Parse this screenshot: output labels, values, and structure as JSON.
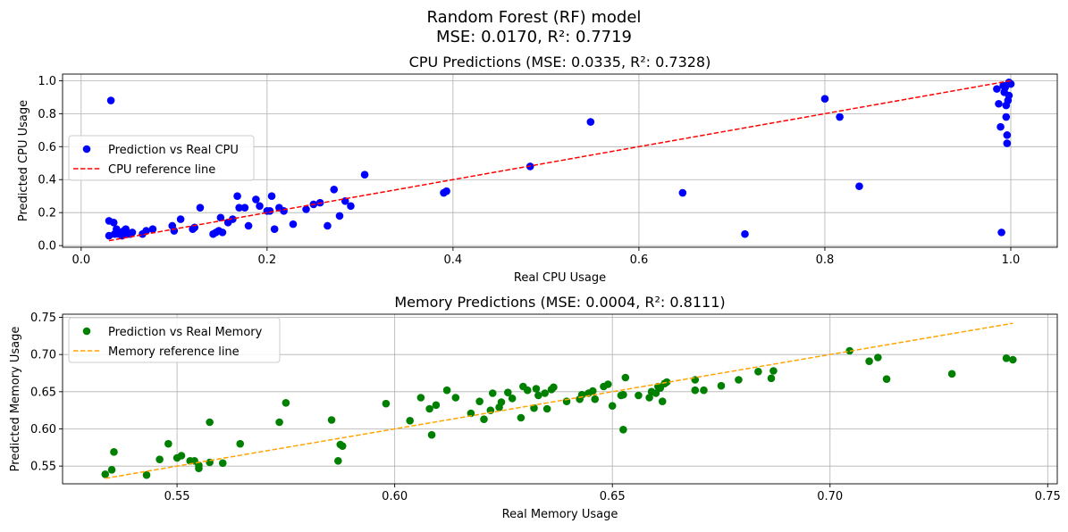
{
  "figure": {
    "title_line1": "Random Forest (RF) model",
    "title_line2": "MSE: 0.0170, R²: 0.7719"
  },
  "chart_data": [
    {
      "type": "scatter",
      "title": "CPU Predictions (MSE: 0.0335, R²: 0.7328)",
      "xlabel": "Real CPU Usage",
      "ylabel": "Predicted CPU Usage",
      "xlim": [
        -0.02,
        1.05
      ],
      "ylim": [
        -0.01,
        1.04
      ],
      "xticks": [
        0.0,
        0.2,
        0.4,
        0.6,
        0.8,
        1.0
      ],
      "xtick_labels": [
        "0.0",
        "0.2",
        "0.4",
        "0.6",
        "0.8",
        "1.0"
      ],
      "yticks": [
        0.0,
        0.2,
        0.4,
        0.6,
        0.8,
        1.0
      ],
      "ytick_labels": [
        "0.0",
        "0.2",
        "0.4",
        "0.6",
        "0.8",
        "1.0"
      ],
      "grid": true,
      "legend_position": "center-left",
      "series": [
        {
          "name": "Prediction vs Real CPU",
          "kind": "scatter",
          "color": "#0000ff",
          "points": [
            [
              0.032,
              0.88
            ],
            [
              0.03,
              0.15
            ],
            [
              0.03,
              0.06
            ],
            [
              0.035,
              0.14
            ],
            [
              0.036,
              0.07
            ],
            [
              0.038,
              0.1
            ],
            [
              0.04,
              0.07
            ],
            [
              0.042,
              0.08
            ],
            [
              0.044,
              0.06
            ],
            [
              0.046,
              0.09
            ],
            [
              0.048,
              0.1
            ],
            [
              0.05,
              0.07
            ],
            [
              0.053,
              0.07
            ],
            [
              0.055,
              0.08
            ],
            [
              0.066,
              0.07
            ],
            [
              0.07,
              0.09
            ],
            [
              0.077,
              0.1
            ],
            [
              0.098,
              0.12
            ],
            [
              0.1,
              0.09
            ],
            [
              0.107,
              0.16
            ],
            [
              0.12,
              0.1
            ],
            [
              0.122,
              0.11
            ],
            [
              0.128,
              0.23
            ],
            [
              0.142,
              0.07
            ],
            [
              0.145,
              0.08
            ],
            [
              0.148,
              0.09
            ],
            [
              0.15,
              0.17
            ],
            [
              0.152,
              0.08
            ],
            [
              0.158,
              0.14
            ],
            [
              0.163,
              0.16
            ],
            [
              0.168,
              0.3
            ],
            [
              0.17,
              0.23
            ],
            [
              0.176,
              0.23
            ],
            [
              0.18,
              0.12
            ],
            [
              0.188,
              0.28
            ],
            [
              0.192,
              0.24
            ],
            [
              0.2,
              0.21
            ],
            [
              0.203,
              0.21
            ],
            [
              0.205,
              0.3
            ],
            [
              0.208,
              0.1
            ],
            [
              0.213,
              0.23
            ],
            [
              0.218,
              0.21
            ],
            [
              0.228,
              0.13
            ],
            [
              0.242,
              0.22
            ],
            [
              0.25,
              0.25
            ],
            [
              0.257,
              0.26
            ],
            [
              0.265,
              0.12
            ],
            [
              0.272,
              0.34
            ],
            [
              0.278,
              0.18
            ],
            [
              0.284,
              0.27
            ],
            [
              0.29,
              0.24
            ],
            [
              0.305,
              0.43
            ],
            [
              0.39,
              0.32
            ],
            [
              0.393,
              0.33
            ],
            [
              0.483,
              0.48
            ],
            [
              0.548,
              0.75
            ],
            [
              0.647,
              0.32
            ],
            [
              0.714,
              0.07
            ],
            [
              0.8,
              0.89
            ],
            [
              0.816,
              0.78
            ],
            [
              0.837,
              0.36
            ],
            [
              0.985,
              0.95
            ],
            [
              0.987,
              0.86
            ],
            [
              0.989,
              0.72
            ],
            [
              0.99,
              0.08
            ],
            [
              0.992,
              0.97
            ],
            [
              0.993,
              0.93
            ],
            [
              0.994,
              0.96
            ],
            [
              0.995,
              0.85
            ],
            [
              0.995,
              0.78
            ],
            [
              0.996,
              0.67
            ],
            [
              0.996,
              0.62
            ],
            [
              0.997,
              0.88
            ],
            [
              0.998,
              0.91
            ],
            [
              0.998,
              0.99
            ],
            [
              1.0,
              0.98
            ]
          ]
        },
        {
          "name": "CPU reference line",
          "kind": "line",
          "color": "#ff0000",
          "dash": "dashed",
          "x": [
            0.03,
            1.0
          ],
          "y": [
            0.03,
            1.0
          ]
        }
      ]
    },
    {
      "type": "scatter",
      "title": "Memory Predictions (MSE: 0.0004, R²: 0.8111)",
      "xlabel": "Real Memory Usage",
      "ylabel": "Predicted Memory Usage",
      "xlim": [
        0.5237,
        0.7522
      ],
      "ylim": [
        0.5262,
        0.7542
      ],
      "xticks": [
        0.55,
        0.6,
        0.65,
        0.7,
        0.75
      ],
      "xtick_labels": [
        "0.55",
        "0.60",
        "0.65",
        "0.70",
        "0.75"
      ],
      "yticks": [
        0.55,
        0.6,
        0.65,
        0.7,
        0.75
      ],
      "ytick_labels": [
        "0.55",
        "0.60",
        "0.65",
        "0.70",
        "0.75"
      ],
      "grid": true,
      "legend_position": "top-left",
      "series": [
        {
          "name": "Prediction vs Real Memory",
          "kind": "scatter",
          "color": "#008000",
          "points": [
            [
              0.5335,
              0.539
            ],
            [
              0.535,
              0.545
            ],
            [
              0.5355,
              0.569
            ],
            [
              0.543,
              0.538
            ],
            [
              0.546,
              0.559
            ],
            [
              0.548,
              0.58
            ],
            [
              0.55,
              0.561
            ],
            [
              0.551,
              0.564
            ],
            [
              0.553,
              0.557
            ],
            [
              0.554,
              0.557
            ],
            [
              0.555,
              0.551
            ],
            [
              0.555,
              0.547
            ],
            [
              0.5575,
              0.555
            ],
            [
              0.5575,
              0.609
            ],
            [
              0.5605,
              0.554
            ],
            [
              0.5645,
              0.58
            ],
            [
              0.5735,
              0.609
            ],
            [
              0.575,
              0.635
            ],
            [
              0.5855,
              0.612
            ],
            [
              0.587,
              0.557
            ],
            [
              0.5875,
              0.579
            ],
            [
              0.588,
              0.577
            ],
            [
              0.598,
              0.634
            ],
            [
              0.6035,
              0.611
            ],
            [
              0.606,
              0.642
            ],
            [
              0.608,
              0.627
            ],
            [
              0.6085,
              0.592
            ],
            [
              0.6095,
              0.632
            ],
            [
              0.612,
              0.652
            ],
            [
              0.614,
              0.642
            ],
            [
              0.6175,
              0.621
            ],
            [
              0.6195,
              0.637
            ],
            [
              0.6205,
              0.613
            ],
            [
              0.622,
              0.625
            ],
            [
              0.6225,
              0.648
            ],
            [
              0.624,
              0.629
            ],
            [
              0.6245,
              0.636
            ],
            [
              0.626,
              0.649
            ],
            [
              0.627,
              0.641
            ],
            [
              0.629,
              0.615
            ],
            [
              0.6295,
              0.657
            ],
            [
              0.6305,
              0.652
            ],
            [
              0.632,
              0.628
            ],
            [
              0.6325,
              0.654
            ],
            [
              0.633,
              0.645
            ],
            [
              0.6345,
              0.648
            ],
            [
              0.635,
              0.627
            ],
            [
              0.636,
              0.653
            ],
            [
              0.6365,
              0.656
            ],
            [
              0.6395,
              0.637
            ],
            [
              0.6425,
              0.64
            ],
            [
              0.643,
              0.646
            ],
            [
              0.6445,
              0.648
            ],
            [
              0.6455,
              0.651
            ],
            [
              0.646,
              0.64
            ],
            [
              0.648,
              0.657
            ],
            [
              0.649,
              0.66
            ],
            [
              0.65,
              0.631
            ],
            [
              0.652,
              0.645
            ],
            [
              0.6525,
              0.599
            ],
            [
              0.6525,
              0.646
            ],
            [
              0.653,
              0.669
            ],
            [
              0.656,
              0.645
            ],
            [
              0.6585,
              0.642
            ],
            [
              0.659,
              0.65
            ],
            [
              0.66,
              0.648
            ],
            [
              0.6605,
              0.657
            ],
            [
              0.661,
              0.655
            ],
            [
              0.6615,
              0.637
            ],
            [
              0.662,
              0.661
            ],
            [
              0.6625,
              0.663
            ],
            [
              0.669,
              0.666
            ],
            [
              0.669,
              0.652
            ],
            [
              0.671,
              0.652
            ],
            [
              0.675,
              0.658
            ],
            [
              0.679,
              0.666
            ],
            [
              0.6835,
              0.677
            ],
            [
              0.6865,
              0.668
            ],
            [
              0.687,
              0.678
            ],
            [
              0.7045,
              0.705
            ],
            [
              0.709,
              0.691
            ],
            [
              0.711,
              0.696
            ],
            [
              0.713,
              0.667
            ],
            [
              0.728,
              0.674
            ],
            [
              0.7405,
              0.695
            ],
            [
              0.742,
              0.693
            ]
          ]
        },
        {
          "name": "Memory reference line",
          "kind": "line",
          "color": "#ffa500",
          "dash": "dashed",
          "x": [
            0.5335,
            0.742
          ],
          "y": [
            0.5335,
            0.742
          ]
        }
      ]
    }
  ]
}
